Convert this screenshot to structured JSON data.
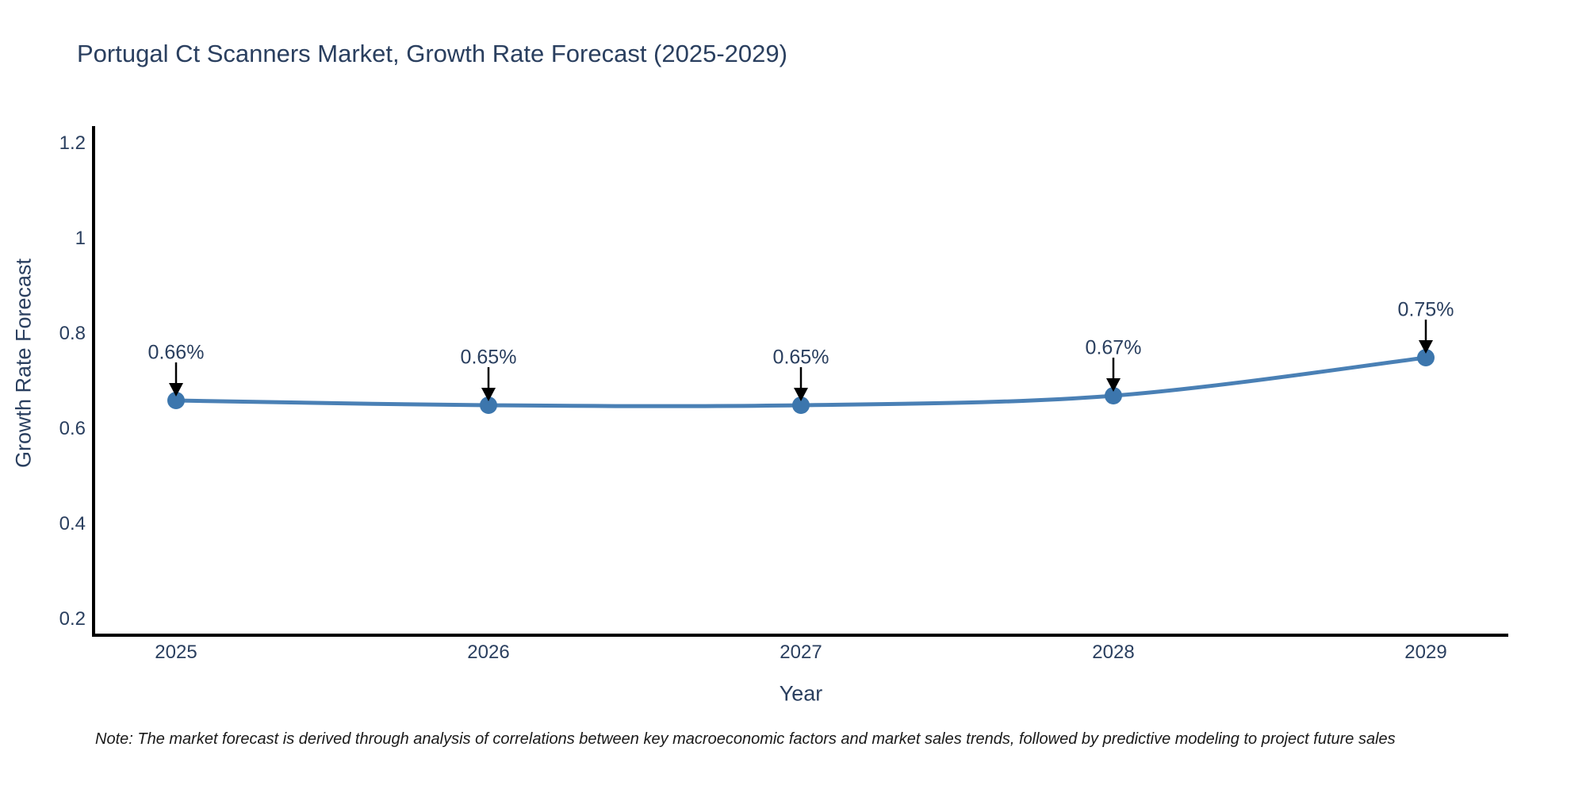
{
  "title": "Portugal Ct Scanners Market, Growth Rate Forecast (2025-2029)",
  "note": "Note: The market forecast is derived through analysis of correlations between key macroeconomic factors and market sales trends, followed by predictive modeling to project future sales",
  "chart_data": {
    "type": "line",
    "title": "Portugal Ct Scanners Market, Growth Rate Forecast (2025-2029)",
    "xlabel": "Year",
    "ylabel": "Growth Rate Forecast",
    "x": [
      2025,
      2026,
      2027,
      2028,
      2029
    ],
    "xtick_labels": [
      "2025",
      "2026",
      "2027",
      "2028",
      "2029"
    ],
    "series": [
      {
        "name": "Growth Rate Forecast",
        "values": [
          0.66,
          0.65,
          0.65,
          0.67,
          0.75
        ]
      }
    ],
    "point_labels": [
      "0.66%",
      "0.65%",
      "0.65%",
      "0.67%",
      "0.75%"
    ],
    "yticks": [
      0.2,
      0.4,
      0.6,
      0.8,
      1,
      1.2
    ],
    "ytick_labels": [
      "0.2",
      "0.4",
      "0.6",
      "0.8",
      "1",
      "1.2"
    ],
    "ylim": [
      0.1667,
      1.2367
    ],
    "grid": false,
    "legend_position": "none",
    "colors": {
      "line": "#4a80b5",
      "marker": "#3c76ad",
      "axis": "#000000",
      "text": "#2a3f5f",
      "arrow": "#000000",
      "note": "#1a1a1a",
      "background": "#ffffff"
    }
  }
}
